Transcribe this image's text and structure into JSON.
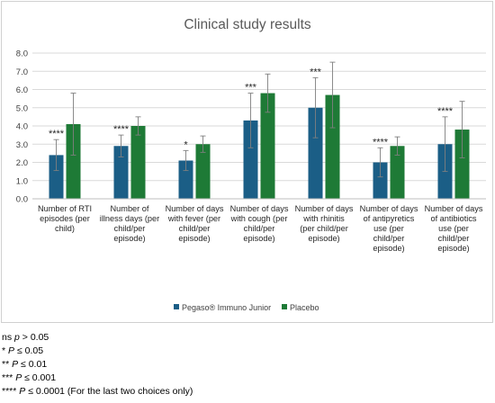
{
  "chart_data": {
    "type": "bar",
    "title": "Clinical study results",
    "ylim": [
      0,
      8
    ],
    "yticks": [
      "0.0",
      "1.0",
      "2.0",
      "3.0",
      "4.0",
      "5.0",
      "6.0",
      "7.0",
      "8.0"
    ],
    "grid": true,
    "legend_position": "bottom",
    "categories": [
      [
        "Number of RTI",
        "episodes (per",
        "child)"
      ],
      [
        "Number of",
        "illness days (per",
        "child/per",
        "episode)"
      ],
      [
        "Number of days",
        "with fever (per",
        "child/per",
        "episode)"
      ],
      [
        "Number of days",
        "with cough (per",
        "child/per",
        "episode)"
      ],
      [
        "Number of days",
        "with rhinitis",
        "(per child/per",
        "episode)"
      ],
      [
        "Number of days",
        "of antipyretics",
        "use (per",
        "child/per",
        "episode)"
      ],
      [
        "Number of days",
        "of antibiotics",
        "use (per",
        "child/per",
        "episode)"
      ]
    ],
    "series": [
      {
        "name": "Pegaso® Immuno Junior",
        "color": "#1b5e86",
        "values": [
          2.4,
          2.9,
          2.1,
          4.3,
          5.0,
          2.0,
          3.0
        ],
        "errors": [
          0.85,
          0.6,
          0.55,
          1.5,
          1.65,
          0.8,
          1.5
        ]
      },
      {
        "name": "Placebo",
        "color": "#1e7a36",
        "values": [
          4.1,
          4.0,
          3.0,
          5.8,
          5.7,
          2.9,
          3.8
        ],
        "errors": [
          1.7,
          0.5,
          0.45,
          1.05,
          1.8,
          0.5,
          1.55
        ]
      }
    ],
    "annotations": [
      "****",
      "****",
      "*",
      "***",
      "***",
      "****",
      "****"
    ]
  },
  "footnotes": [
    {
      "label": "ns",
      "stat": "p",
      "rest": " > 0.05"
    },
    {
      "label": "*",
      "stat": "P",
      "rest": " ≤ 0.05"
    },
    {
      "label": "**",
      "stat": "P",
      "rest": " ≤ 0.01"
    },
    {
      "label": "***",
      "stat": "P",
      "rest": " ≤ 0.001"
    },
    {
      "label": "****",
      "stat": "P",
      "rest": " ≤ 0.0001 (For the last two choices only)"
    }
  ]
}
